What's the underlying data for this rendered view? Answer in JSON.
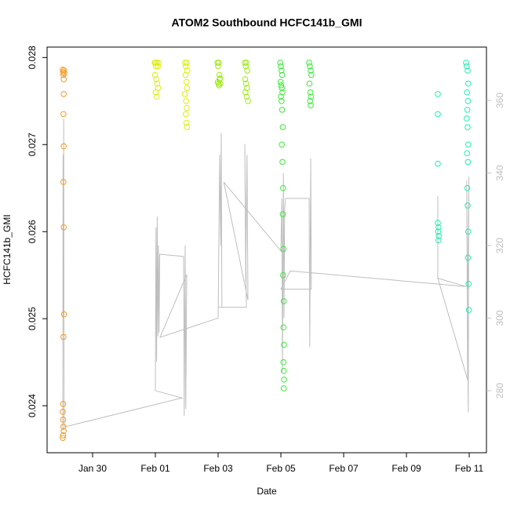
{
  "chart_data": {
    "type": "scatter",
    "title": "ATOM2 Southbound HCFC141b_GMI",
    "x_label": "Date",
    "y_label": "HCFC141b_GMI",
    "xlim": [
      28.55,
      42.55
    ],
    "xticks": [
      {
        "value": 30,
        "label": "Jan 30"
      },
      {
        "value": 32,
        "label": "Feb 01"
      },
      {
        "value": 34,
        "label": "Feb 03"
      },
      {
        "value": 36,
        "label": "Feb 05"
      },
      {
        "value": 38,
        "label": "Feb 07"
      },
      {
        "value": 40,
        "label": "Feb 09"
      },
      {
        "value": 42,
        "label": "Feb 11"
      }
    ],
    "ylim": [
      0.02346,
      0.02812
    ],
    "yticks": [
      0.024,
      0.025,
      0.026,
      0.027,
      0.028
    ],
    "y2lim": [
      262.9,
      374.7
    ],
    "y2ticks": [
      280,
      300,
      320,
      340,
      360
    ],
    "series": [
      {
        "type": "line",
        "axis": "y2",
        "color": "#bebebe",
        "x": [
          29.05,
          29.06,
          29.07,
          29.08,
          29.09,
          29.1,
          32.85,
          32.0,
          32.02,
          32.04,
          32.06,
          32.08,
          32.1,
          32.12,
          32.14,
          32.9,
          32.92,
          32.95,
          32.97,
          33.0,
          32.15,
          34.0,
          34.05,
          34.08,
          34.1,
          34.12,
          34.0,
          34.9,
          34.85,
          34.88,
          34.92,
          34.95,
          34.18,
          36.0,
          36.03,
          36.05,
          36.08,
          36.1,
          36.12,
          36.15,
          36.9,
          36.92,
          36.95,
          36.97,
          36.0,
          36.3,
          41.9,
          41.0,
          41.0,
          41.0,
          41.95,
          41.92,
          41.97,
          41.99,
          41.96
        ],
        "values": [
          269,
          345,
          300,
          355,
          272,
          270,
          278,
          280,
          325,
          288,
          328,
          295,
          320,
          296,
          317.6,
          317,
          273,
          320,
          275,
          312,
          294.7,
          300,
          345,
          320,
          351,
          303,
          303,
          303,
          348,
          310,
          345,
          305,
          337.5,
          318.5,
          333,
          285,
          340,
          300,
          330,
          333,
          333,
          292,
          344,
          308,
          308,
          313,
          308.7,
          311,
          333.6,
          311,
          283,
          338,
          274,
          339,
          308
        ]
      },
      {
        "color": "#f29a27",
        "x": [
          29.05,
          29.06,
          29.07,
          29.08,
          29.09,
          29.1,
          29.08,
          29.07,
          29.08,
          29.07,
          29.08,
          29.09,
          29.07,
          29.06,
          29.05,
          29.06,
          29.07,
          29.08,
          29.06,
          29.05
        ],
        "values": [
          0.02786,
          0.02783,
          0.0278,
          0.02775,
          0.02785,
          0.02782,
          0.02758,
          0.02735,
          0.02698,
          0.02657,
          0.02605,
          0.02505,
          0.02479,
          0.02402,
          0.02393,
          0.02384,
          0.02376,
          0.02371,
          0.02366,
          0.02363
        ]
      },
      {
        "color": "#dcee0f",
        "x": [
          31.98,
          32.0,
          32.02,
          32.05,
          32.08,
          32.1,
          31.99,
          32.03,
          32.06,
          32.09,
          32.01,
          32.04,
          32.95,
          32.97,
          33.0,
          33.02,
          32.96,
          32.99,
          33.01,
          32.94,
          32.98,
          33.0,
          32.97,
          32.99,
          33.01
        ],
        "values": [
          0.02794,
          0.02794,
          0.0279,
          0.02794,
          0.0279,
          0.02794,
          0.0278,
          0.02775,
          0.0277,
          0.02765,
          0.0276,
          0.02755,
          0.02794,
          0.0279,
          0.02794,
          0.02785,
          0.0278,
          0.02772,
          0.02765,
          0.02758,
          0.0275,
          0.02742,
          0.02735,
          0.02725,
          0.0272
        ]
      },
      {
        "color": "#9ee81a",
        "x": [
          33.98,
          34.0,
          34.02,
          34.04,
          34.06,
          33.99,
          34.01,
          34.03,
          34.05,
          34.07,
          34.85,
          34.88,
          34.9,
          34.93,
          34.86,
          34.89,
          34.92,
          34.87,
          34.91,
          34.95
        ],
        "values": [
          0.02794,
          0.0279,
          0.02794,
          0.0278,
          0.02776,
          0.02772,
          0.0277,
          0.02768,
          0.02775,
          0.0277,
          0.02794,
          0.0279,
          0.02794,
          0.02785,
          0.02775,
          0.0277,
          0.02765,
          0.0276,
          0.02755,
          0.0275
        ]
      },
      {
        "color": "#3ee83a",
        "x": [
          35.98,
          36.0,
          36.02,
          36.04,
          35.99,
          36.01,
          36.03,
          36.05,
          36.0,
          36.02,
          36.04,
          36.06,
          36.03,
          36.05,
          36.07,
          36.06,
          36.08,
          36.07,
          36.09,
          36.08,
          36.1,
          36.08,
          36.09,
          36.1,
          36.09,
          36.9,
          36.92,
          36.95,
          36.97,
          36.91,
          36.94,
          36.96,
          36.93,
          36.95
        ],
        "values": [
          0.02794,
          0.0279,
          0.02785,
          0.0278,
          0.02772,
          0.02768,
          0.02765,
          0.0276,
          0.02755,
          0.0275,
          0.0274,
          0.0272,
          0.027,
          0.0268,
          0.0265,
          0.0262,
          0.0258,
          0.0255,
          0.0252,
          0.0249,
          0.0247,
          0.0245,
          0.0244,
          0.0243,
          0.0242,
          0.02794,
          0.0279,
          0.02785,
          0.0278,
          0.0277,
          0.0276,
          0.02755,
          0.0275,
          0.02745
        ]
      },
      {
        "color": "#22eeb0",
        "x": [
          41.0,
          41.0,
          41.0,
          41.0,
          41.02,
          41.01,
          41.03,
          41.02,
          41.9,
          41.92,
          41.95,
          41.97,
          41.93,
          41.96,
          41.94,
          41.92,
          41.95,
          41.97,
          41.93,
          41.96,
          41.94,
          41.95,
          41.97,
          41.96,
          41.98,
          41.99
        ],
        "values": [
          0.02758,
          0.02735,
          0.02678,
          0.0261,
          0.02605,
          0.026,
          0.02595,
          0.0259,
          0.02794,
          0.0279,
          0.02785,
          0.0277,
          0.0276,
          0.0275,
          0.0274,
          0.0273,
          0.0272,
          0.027,
          0.0269,
          0.0268,
          0.0265,
          0.0263,
          0.026,
          0.0257,
          0.0254,
          0.0251
        ]
      }
    ]
  }
}
